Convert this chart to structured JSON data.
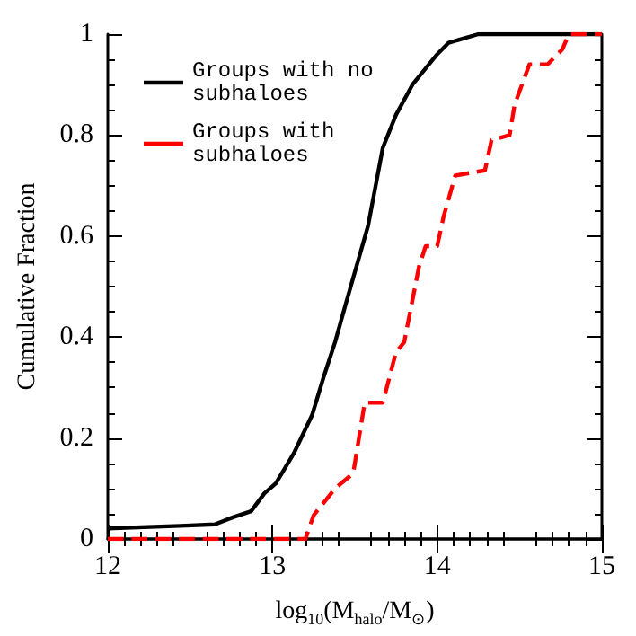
{
  "chart_data": {
    "type": "line",
    "xlabel": "log$_{10}$(M$_{halo}$/M$_{⊙}$)",
    "ylabel": "Cumulative Fraction",
    "xlim": [
      12,
      15
    ],
    "xticks": [
      12,
      13,
      14,
      15
    ],
    "ylim": [
      0,
      1
    ],
    "yticks": [
      0,
      0.2,
      0.4,
      0.6,
      0.8,
      1
    ],
    "legend": "top left",
    "grid": false,
    "series": [
      {
        "name": "Groups with no subhaloes",
        "color": "#000000",
        "line_style": "solid",
        "x": [
          12,
          12.44,
          12.65,
          12.76,
          12.87,
          12.95,
          13.02,
          13.13,
          13.24,
          13.31,
          13.38,
          13.44,
          13.51,
          13.58,
          13.67,
          13.75,
          13.85,
          14.0,
          14.07,
          14.25,
          15
        ],
        "values": [
          0.021,
          0.026,
          0.029,
          0.043,
          0.055,
          0.09,
          0.11,
          0.17,
          0.245,
          0.32,
          0.39,
          0.46,
          0.54,
          0.62,
          0.775,
          0.84,
          0.9,
          0.96,
          0.983,
          1,
          1
        ]
      },
      {
        "name": "Groups with subhaloes",
        "color": "#ff0000",
        "line_style": "dashed",
        "x": [
          12,
          13.2,
          13.25,
          13.38,
          13.49,
          13.56,
          13.67,
          13.75,
          13.8,
          13.89,
          13.93,
          14.0,
          14.04,
          14.11,
          14.29,
          14.33,
          14.44,
          14.47,
          14.56,
          14.67,
          14.76,
          14.8,
          15
        ],
        "values": [
          0,
          0,
          0.047,
          0.1,
          0.13,
          0.27,
          0.27,
          0.37,
          0.39,
          0.54,
          0.58,
          0.58,
          0.64,
          0.72,
          0.73,
          0.79,
          0.8,
          0.86,
          0.94,
          0.94,
          0.97,
          1,
          1
        ]
      }
    ]
  }
}
